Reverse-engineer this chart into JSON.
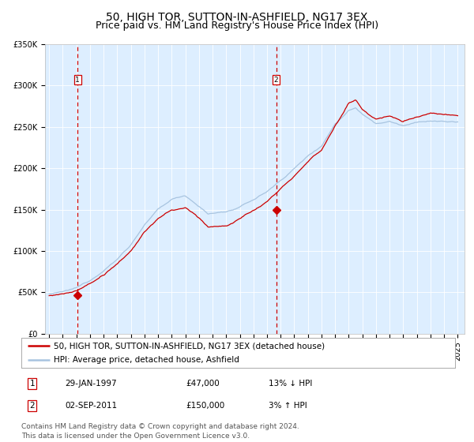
{
  "title": "50, HIGH TOR, SUTTON-IN-ASHFIELD, NG17 3EX",
  "subtitle": "Price paid vs. HM Land Registry's House Price Index (HPI)",
  "x_start_year": 1995,
  "x_end_year": 2025,
  "y_min": 0,
  "y_max": 350000,
  "y_ticks": [
    0,
    50000,
    100000,
    150000,
    200000,
    250000,
    300000,
    350000
  ],
  "y_tick_labels": [
    "£0",
    "£50K",
    "£100K",
    "£150K",
    "£200K",
    "£250K",
    "£300K",
    "£350K"
  ],
  "hpi_color": "#a8c4e0",
  "price_color": "#cc0000",
  "marker_color": "#cc0000",
  "dashed_line_color": "#cc0000",
  "plot_bg_color": "#ddeeff",
  "legend_label_price": "50, HIGH TOR, SUTTON-IN-ASHFIELD, NG17 3EX (detached house)",
  "legend_label_hpi": "HPI: Average price, detached house, Ashfield",
  "transaction1_date": "29-JAN-1997",
  "transaction1_price": "£47,000",
  "transaction1_hpi": "13% ↓ HPI",
  "transaction1_year": 1997.08,
  "transaction1_value": 47000,
  "transaction2_date": "02-SEP-2011",
  "transaction2_price": "£150,000",
  "transaction2_hpi": "3% ↑ HPI",
  "transaction2_year": 2011.67,
  "transaction2_value": 150000,
  "footer_text": "Contains HM Land Registry data © Crown copyright and database right 2024.\nThis data is licensed under the Open Government Licence v3.0.",
  "title_fontsize": 10,
  "subtitle_fontsize": 9,
  "tick_fontsize": 7,
  "legend_fontsize": 7.5,
  "footer_fontsize": 6.5
}
